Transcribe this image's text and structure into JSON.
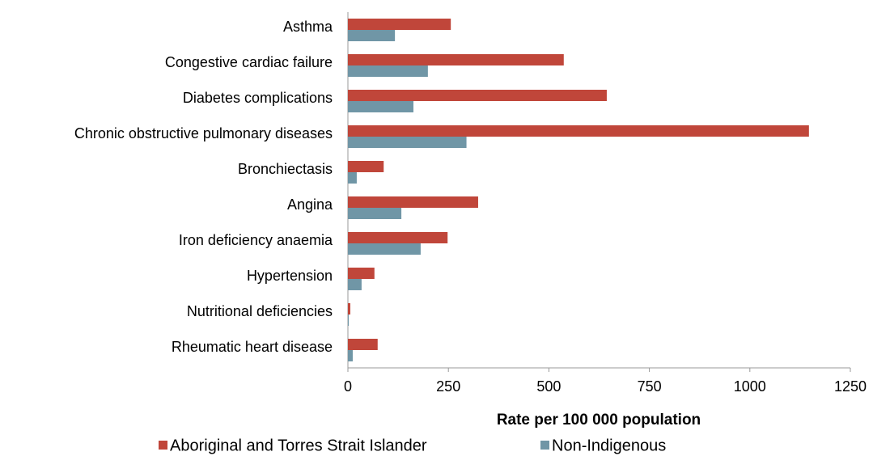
{
  "chart_data": {
    "type": "bar",
    "orientation": "horizontal",
    "xlabel": "Rate per 100 000 population",
    "categories": [
      "Asthma",
      "Congestive cardiac failure",
      "Diabetes complications",
      "Chronic obstructive pulmonary diseases",
      "Bronchiectasis",
      "Angina",
      "Iron deficiency anaemia",
      "Hypertension",
      "Nutritional deficiencies",
      "Rheumatic heart disease"
    ],
    "series": [
      {
        "name": "Aboriginal and Torres Strait Islander",
        "color": "#c0463a",
        "values": [
          256,
          537,
          644,
          1147,
          89,
          324,
          248,
          66,
          6,
          74
        ]
      },
      {
        "name": "Non-Indigenous",
        "color": "#7096a6",
        "values": [
          117,
          199,
          163,
          295,
          22,
          133,
          181,
          34,
          2,
          12
        ]
      }
    ],
    "xlim": [
      0,
      1250
    ],
    "xticks": [
      0,
      250,
      500,
      750,
      1000,
      1250
    ],
    "grid": false,
    "legend": "bottom"
  }
}
